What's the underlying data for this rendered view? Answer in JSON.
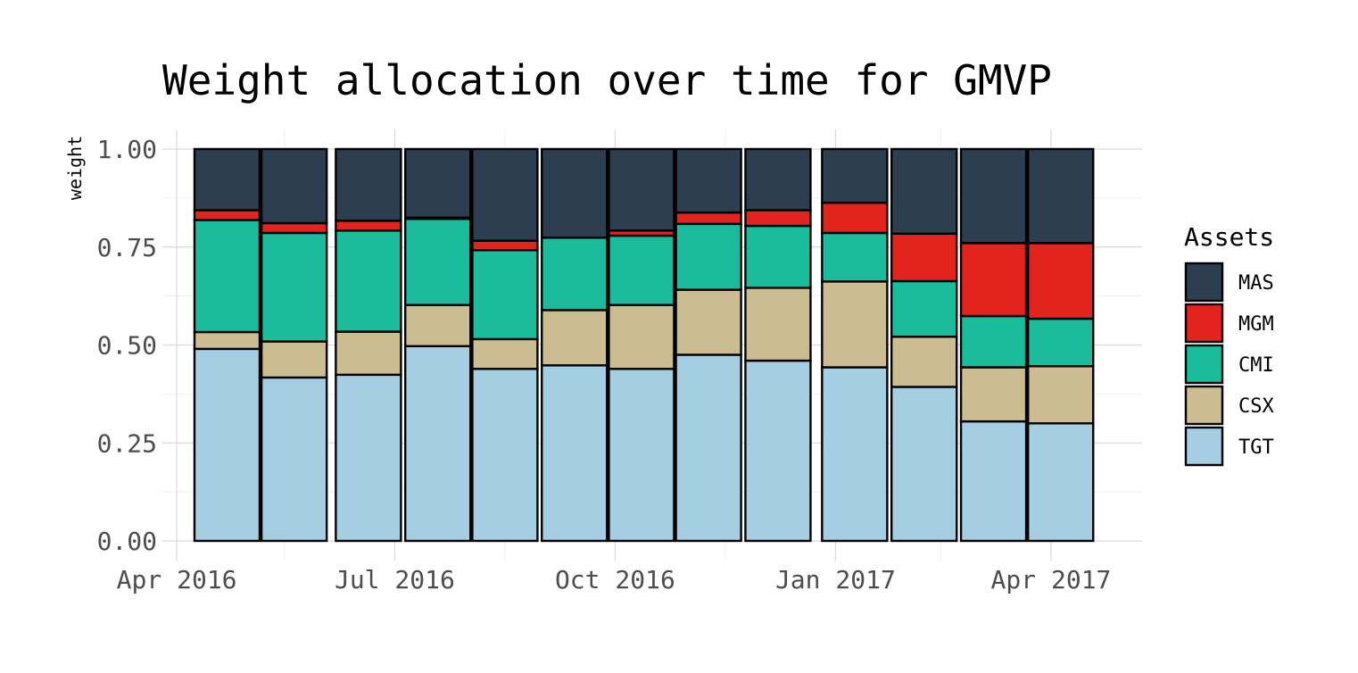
{
  "chart_data": {
    "type": "bar",
    "stacked": true,
    "title": "Weight allocation over time for GMVP",
    "xlabel": "",
    "ylabel": "weight",
    "ylim": [
      0,
      1
    ],
    "yticks": [
      "0.00",
      "0.25",
      "0.50",
      "0.75",
      "1.00"
    ],
    "xlim": [
      "2016-03-26",
      "2017-05-09"
    ],
    "xticks": [
      {
        "date": "2016-04-01",
        "label": "Apr 2016"
      },
      {
        "date": "2016-07-01",
        "label": "Jul 2016"
      },
      {
        "date": "2016-10-01",
        "label": "Oct 2016"
      },
      {
        "date": "2017-01-01",
        "label": "Jan 2017"
      },
      {
        "date": "2017-04-01",
        "label": "Apr 2017"
      }
    ],
    "x_minor_ticks": [
      "2016-05-16",
      "2016-08-16",
      "2016-11-16",
      "2017-02-14"
    ],
    "grid": true,
    "legend": {
      "title": "Assets",
      "position": "right",
      "order": [
        "MAS",
        "MGM",
        "CMI",
        "CSX",
        "TGT"
      ]
    },
    "colors": {
      "TGT": "#a6cee3",
      "CSX": "#cbbd91",
      "CMI": "#1abc9c",
      "MGM": "#e2231e",
      "MAS": "#2c3e50"
    },
    "x": [
      "2016-04-22",
      "2016-05-20",
      "2016-06-20",
      "2016-07-19",
      "2016-08-16",
      "2016-09-14",
      "2016-10-12",
      "2016-11-09",
      "2016-12-08",
      "2017-01-09",
      "2017-02-07",
      "2017-03-08",
      "2017-04-05"
    ],
    "series": [
      {
        "name": "TGT",
        "values": [
          0.49,
          0.417,
          0.424,
          0.497,
          0.439,
          0.448,
          0.439,
          0.475,
          0.46,
          0.443,
          0.393,
          0.305,
          0.3
        ]
      },
      {
        "name": "CSX",
        "values": [
          0.043,
          0.092,
          0.11,
          0.105,
          0.076,
          0.141,
          0.163,
          0.166,
          0.186,
          0.219,
          0.128,
          0.138,
          0.146
        ]
      },
      {
        "name": "CMI",
        "values": [
          0.286,
          0.277,
          0.258,
          0.22,
          0.227,
          0.185,
          0.177,
          0.168,
          0.158,
          0.124,
          0.142,
          0.131,
          0.121
        ]
      },
      {
        "name": "MGM",
        "values": [
          0.025,
          0.025,
          0.025,
          0.003,
          0.024,
          0.0,
          0.013,
          0.029,
          0.04,
          0.077,
          0.121,
          0.186,
          0.193
        ]
      },
      {
        "name": "MAS",
        "values": [
          0.156,
          0.189,
          0.183,
          0.175,
          0.234,
          0.226,
          0.208,
          0.162,
          0.156,
          0.137,
          0.216,
          0.24,
          0.24
        ]
      }
    ]
  }
}
